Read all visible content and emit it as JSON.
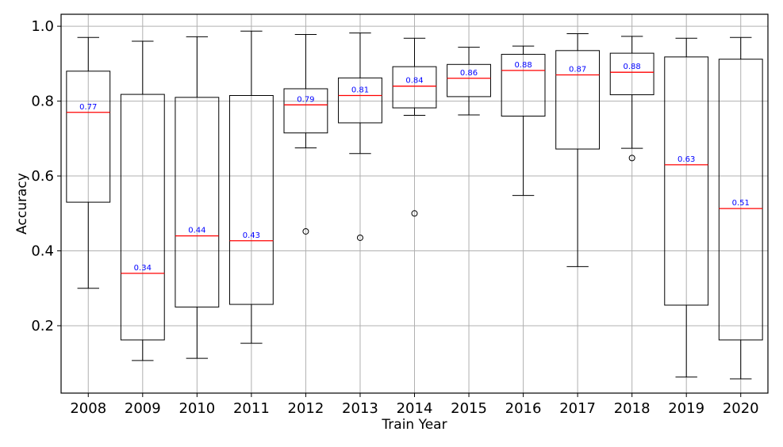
{
  "chart_data": {
    "type": "box",
    "xlabel": "Train Year",
    "ylabel": "Accuracy",
    "ylim": [
      0.02,
      1.032
    ],
    "yticks": [
      "0.2",
      "0.4",
      "0.6",
      "0.8",
      "1.0"
    ],
    "grid": true,
    "colors": {
      "box": "#000000",
      "median": "#ff0000",
      "median_label": "#0000ff",
      "grid": "#b0b0b0"
    },
    "boxes": [
      {
        "category": "2008",
        "whislo": 0.3,
        "q1": 0.53,
        "med": 0.77,
        "q3": 0.88,
        "whishi": 0.97,
        "fliers": [],
        "median_label": "0.77"
      },
      {
        "category": "2009",
        "whislo": 0.107,
        "q1": 0.162,
        "med": 0.34,
        "q3": 0.818,
        "whishi": 0.96,
        "fliers": [],
        "median_label": "0.34"
      },
      {
        "category": "2010",
        "whislo": 0.113,
        "q1": 0.25,
        "med": 0.44,
        "q3": 0.81,
        "whishi": 0.972,
        "fliers": [],
        "median_label": "0.44"
      },
      {
        "category": "2011",
        "whislo": 0.153,
        "q1": 0.257,
        "med": 0.427,
        "q3": 0.815,
        "whishi": 0.987,
        "fliers": [],
        "median_label": "0.43"
      },
      {
        "category": "2012",
        "whislo": 0.675,
        "q1": 0.715,
        "med": 0.79,
        "q3": 0.833,
        "whishi": 0.978,
        "fliers": [
          0.452
        ],
        "median_label": "0.79"
      },
      {
        "category": "2013",
        "whislo": 0.66,
        "q1": 0.742,
        "med": 0.815,
        "q3": 0.862,
        "whishi": 0.982,
        "fliers": [
          0.435
        ],
        "median_label": "0.81"
      },
      {
        "category": "2014",
        "whislo": 0.762,
        "q1": 0.782,
        "med": 0.84,
        "q3": 0.892,
        "whishi": 0.968,
        "fliers": [
          0.5
        ],
        "median_label": "0.84"
      },
      {
        "category": "2015",
        "whislo": 0.763,
        "q1": 0.812,
        "med": 0.861,
        "q3": 0.898,
        "whishi": 0.944,
        "fliers": [],
        "median_label": "0.86"
      },
      {
        "category": "2016",
        "whislo": 0.548,
        "q1": 0.76,
        "med": 0.882,
        "q3": 0.925,
        "whishi": 0.947,
        "fliers": [],
        "median_label": "0.88"
      },
      {
        "category": "2017",
        "whislo": 0.358,
        "q1": 0.672,
        "med": 0.87,
        "q3": 0.935,
        "whishi": 0.98,
        "fliers": [],
        "median_label": "0.87"
      },
      {
        "category": "2018",
        "whislo": 0.674,
        "q1": 0.817,
        "med": 0.877,
        "q3": 0.928,
        "whishi": 0.973,
        "fliers": [
          0.648
        ],
        "median_label": "0.88"
      },
      {
        "category": "2019",
        "whislo": 0.063,
        "q1": 0.255,
        "med": 0.63,
        "q3": 0.918,
        "whishi": 0.968,
        "fliers": [],
        "median_label": "0.63"
      },
      {
        "category": "2020",
        "whislo": 0.058,
        "q1": 0.162,
        "med": 0.513,
        "q3": 0.912,
        "whishi": 0.97,
        "fliers": [],
        "median_label": "0.51"
      }
    ]
  }
}
